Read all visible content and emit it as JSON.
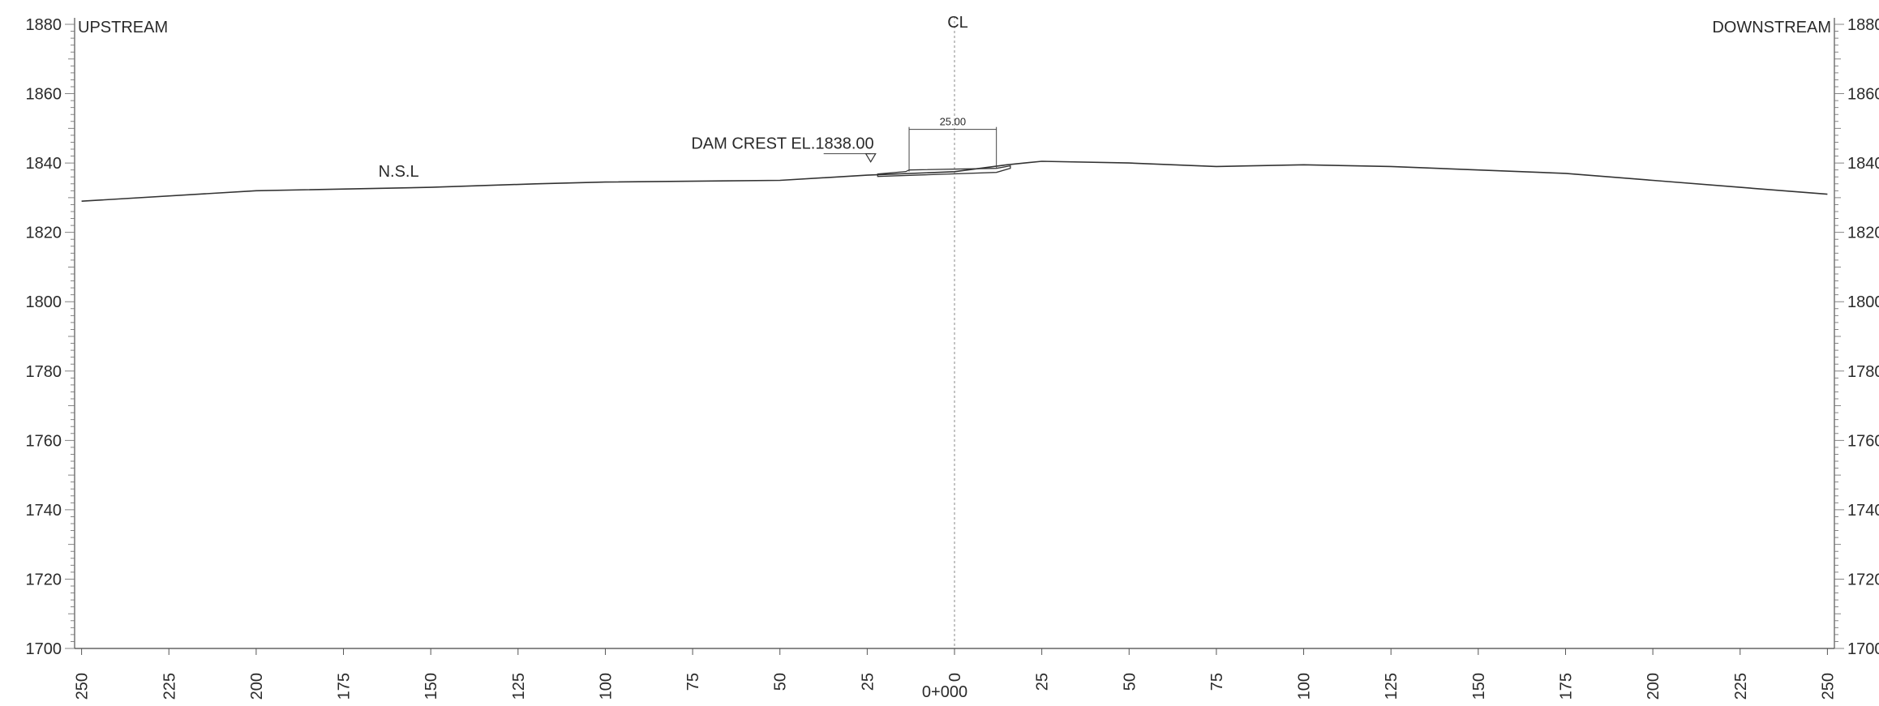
{
  "chart_data": {
    "type": "line",
    "title": "",
    "left_label": "UPSTREAM",
    "right_label": "DOWNSTREAM",
    "xlabel": "0+000",
    "centerline_label": "CL",
    "ground_label": "N.S.L",
    "crest_label": "DAM CREST EL.1838.00",
    "crest_elevation": 1838.0,
    "crest_width_label": "25.00",
    "crest_from": -13,
    "crest_to": 12,
    "xlim": [
      -252,
      252
    ],
    "ylim": [
      1700,
      1880
    ],
    "x_ticks": [
      -250,
      -225,
      -200,
      -175,
      -150,
      -125,
      -100,
      -75,
      -50,
      -25,
      0,
      25,
      50,
      75,
      100,
      125,
      150,
      175,
      200,
      225,
      250
    ],
    "x_tick_labels": [
      "250",
      "225",
      "200",
      "175",
      "150",
      "125",
      "100",
      "75",
      "50",
      "25",
      "0",
      "25",
      "50",
      "75",
      "100",
      "125",
      "150",
      "175",
      "200",
      "225",
      "250"
    ],
    "y_ticks": [
      1700,
      1720,
      1740,
      1760,
      1780,
      1800,
      1820,
      1840,
      1860,
      1880
    ],
    "y_tick_labels": [
      "1700",
      "1720",
      "1740",
      "1760",
      "1780",
      "1800",
      "1820",
      "1840",
      "1860",
      "1880"
    ],
    "grid": false,
    "series": [
      {
        "name": "N.S.L",
        "x": [
          -250,
          -200,
          -150,
          -120,
          -100,
          -50,
          -25,
          0,
          15,
          25,
          50,
          75,
          100,
          125,
          150,
          175,
          200,
          225,
          250
        ],
        "y": [
          1829,
          1832,
          1833,
          1834,
          1834.5,
          1835,
          1836.5,
          1837.5,
          1839.5,
          1840.5,
          1840,
          1839,
          1839.5,
          1839,
          1838,
          1837,
          1835,
          1833,
          1831
        ]
      }
    ]
  }
}
